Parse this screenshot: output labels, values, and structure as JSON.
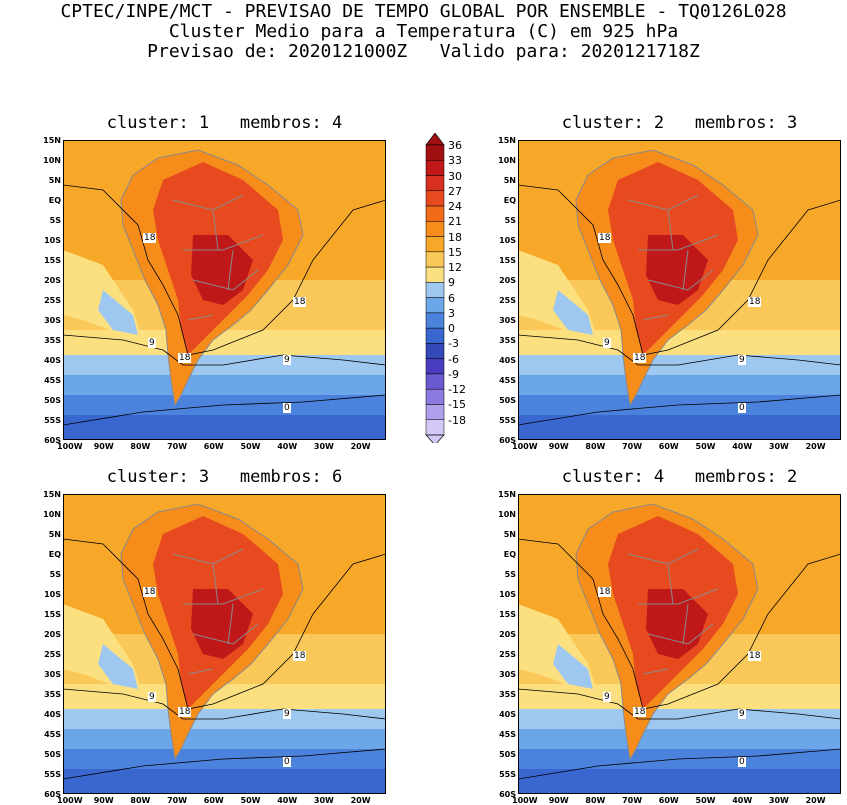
{
  "header": {
    "line1": "CPTEC/INPE/MCT - PREVISAO DE TEMPO GLOBAL POR ENSEMBLE - TQ0126L028",
    "line2": "Cluster Medio para a Temperatura (C) em 925 hPa",
    "line3": "Previsao de: 2020121000Z   Valido para: 2020121718Z"
  },
  "axes": {
    "lat_ticks": [
      "15N",
      "10N",
      "5N",
      "EQ",
      "5S",
      "10S",
      "15S",
      "20S",
      "25S",
      "30S",
      "35S",
      "40S",
      "45S",
      "50S",
      "55S",
      "60S"
    ],
    "lon_ticks": [
      "100W",
      "90W",
      "80W",
      "70W",
      "60W",
      "50W",
      "40W",
      "30W",
      "20W"
    ]
  },
  "colorbar": {
    "levels": [
      "36",
      "33",
      "30",
      "27",
      "24",
      "21",
      "18",
      "15",
      "12",
      "9",
      "6",
      "3",
      "0",
      "-3",
      "-6",
      "-9",
      "-12",
      "-15",
      "-18"
    ],
    "colors": [
      "#a01010",
      "#c01818",
      "#d83020",
      "#e84a20",
      "#f06a18",
      "#f68c1a",
      "#f8a828",
      "#fac858",
      "#fce080",
      "#9ec8f0",
      "#6aa6e8",
      "#4a82dc",
      "#3a66d0",
      "#3448b8",
      "#4a3cc0",
      "#6a5ad0",
      "#8c7ae0",
      "#b0a0ec",
      "#d4c8f6"
    ]
  },
  "panels": [
    {
      "title": "cluster: 1   membros: 4",
      "labels": [
        "18",
        "18",
        "9",
        "18",
        "9",
        "0"
      ]
    },
    {
      "title": "cluster: 2   membros: 3",
      "labels": [
        "18",
        "18",
        "9",
        "18",
        "9",
        "0"
      ]
    },
    {
      "title": "cluster: 3   membros: 6",
      "labels": [
        "18",
        "18",
        "9",
        "18",
        "9",
        "0"
      ]
    },
    {
      "title": "cluster: 4   membros: 2",
      "labels": [
        "18",
        "18",
        "9",
        "18",
        "9",
        "0"
      ]
    }
  ]
}
